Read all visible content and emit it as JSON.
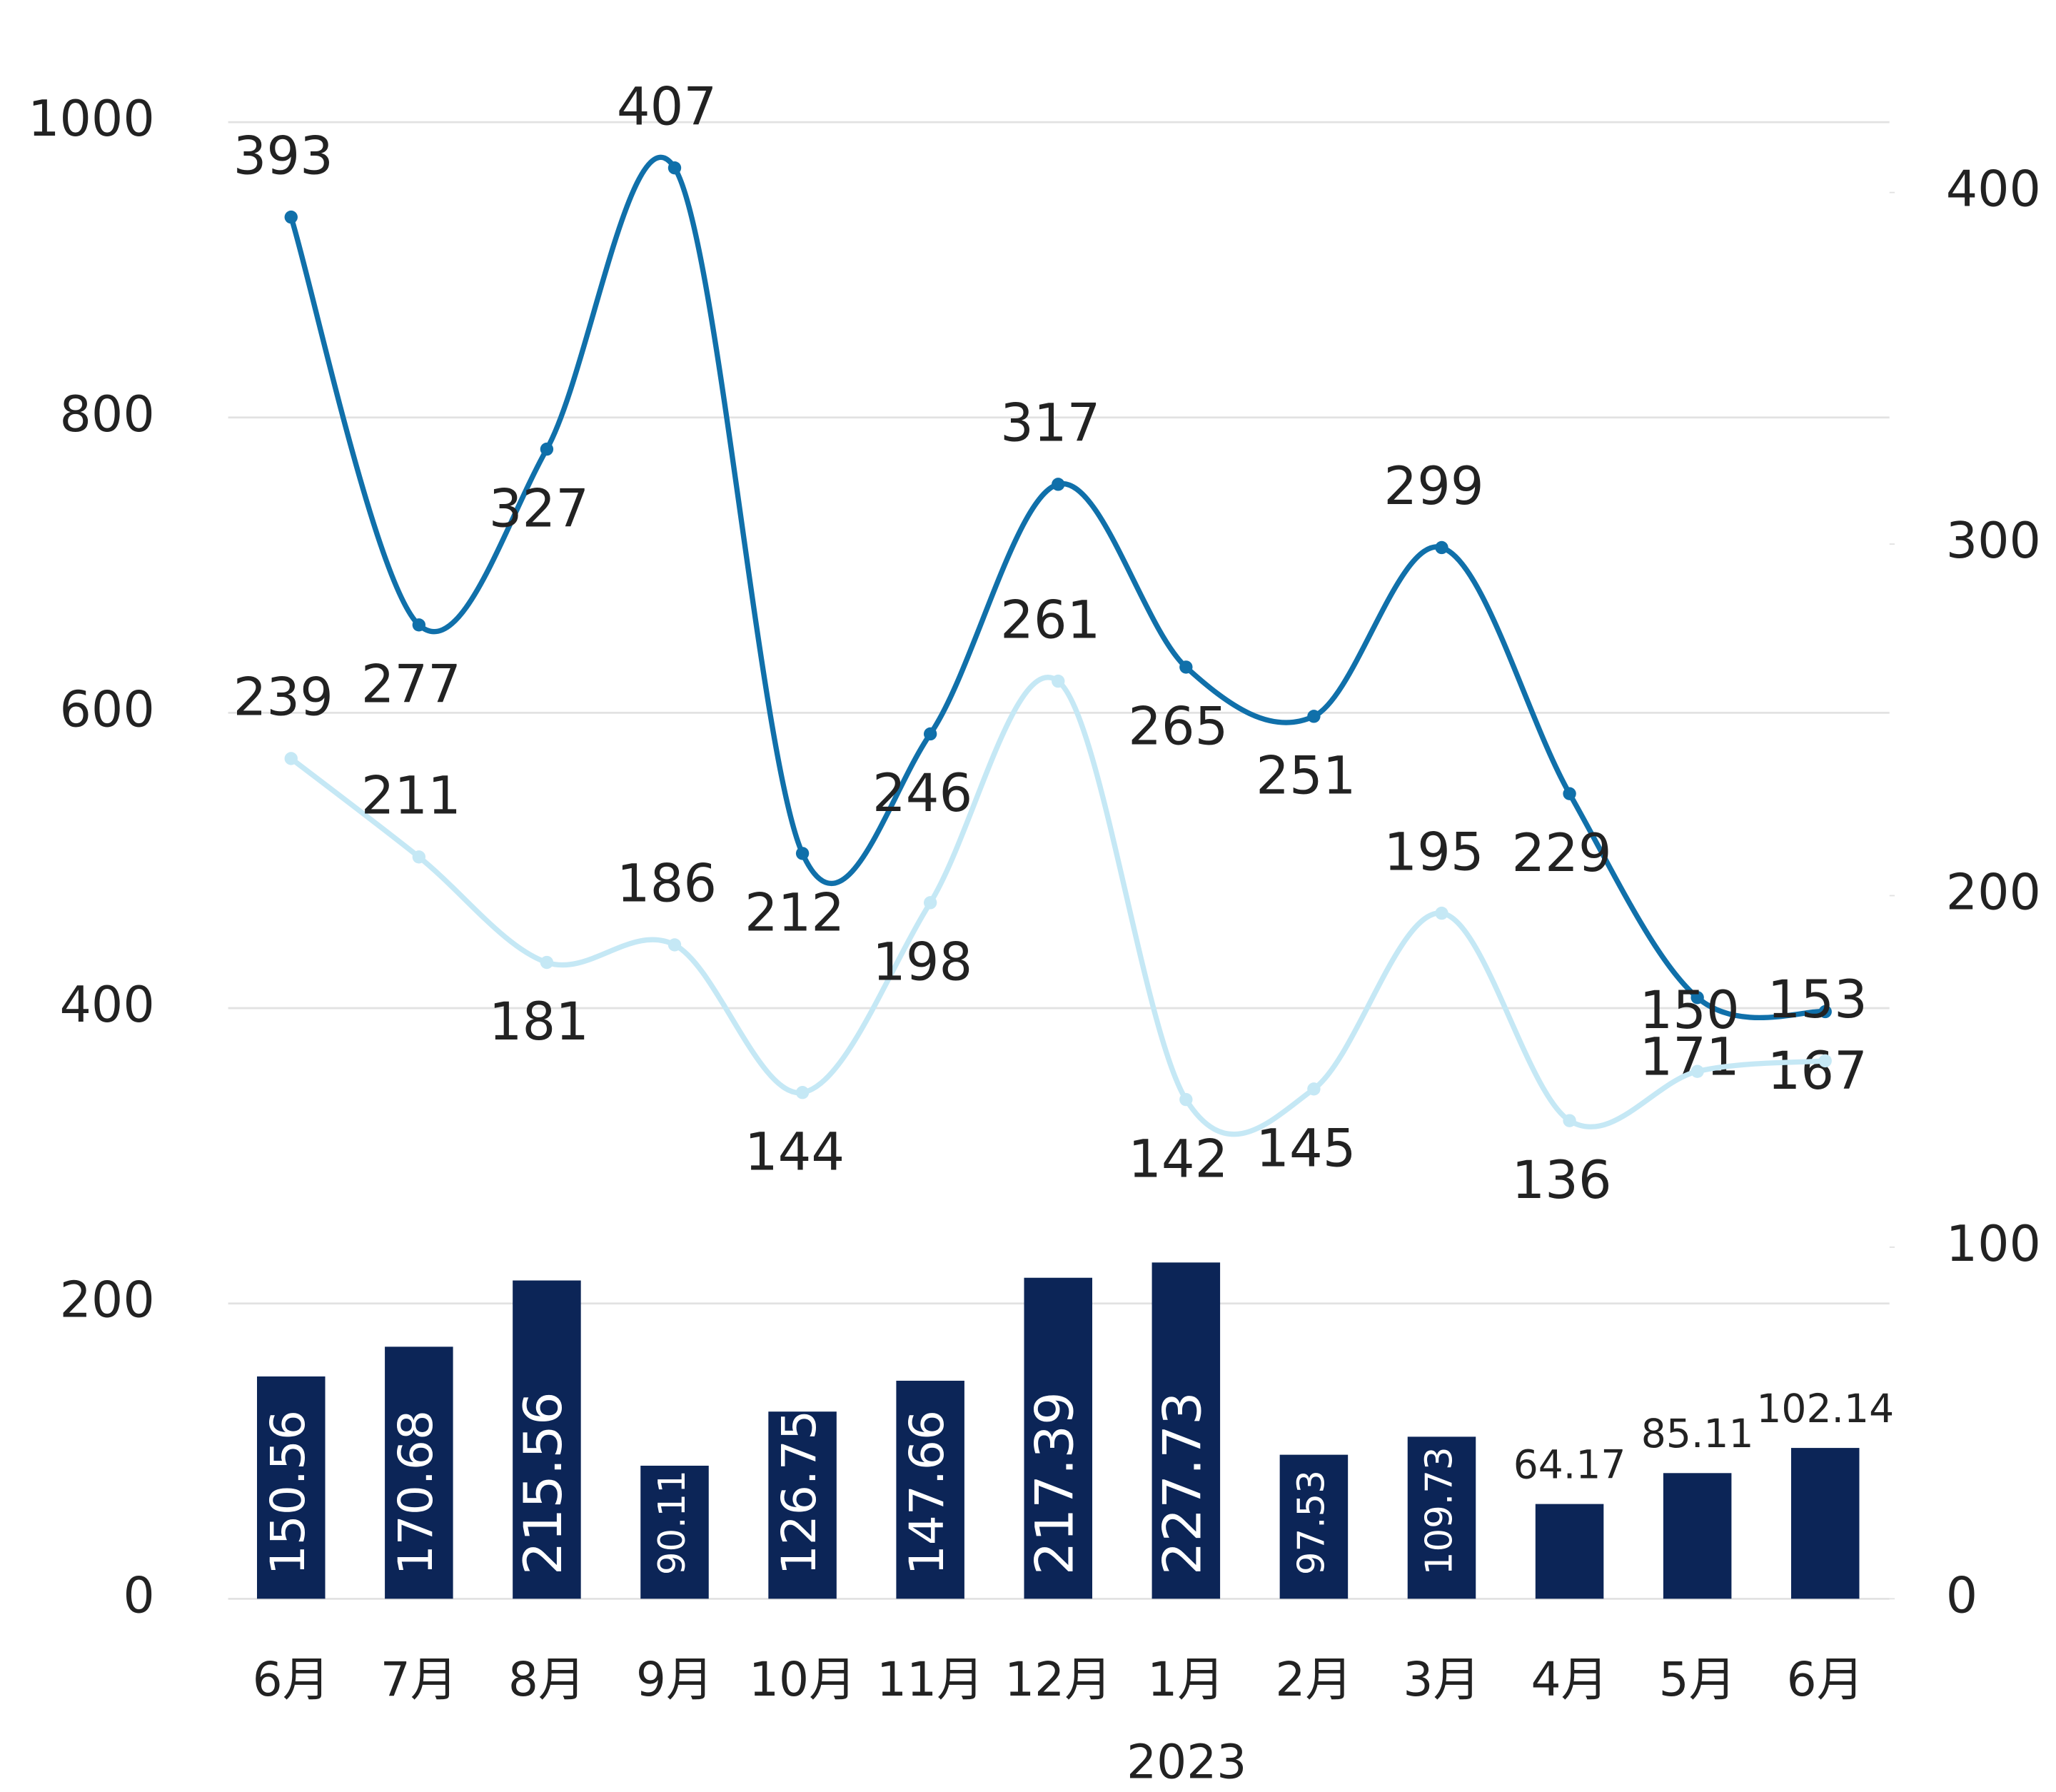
{
  "chart_data": {
    "type": "bar-line",
    "categories": [
      "6月",
      "7月",
      "8月",
      "9月",
      "10月",
      "11月",
      "12月",
      "1月",
      "2月",
      "3月",
      "4月",
      "5月",
      "6月"
    ],
    "group_label": "2023",
    "values": [
      150.56,
      170.68,
      215.56,
      90.11,
      126.75,
      147.66,
      217.39,
      227.73,
      97.53,
      109.73,
      64.17,
      85.11,
      102.14
    ],
    "color": "#0c2557",
    "series": [
      {
        "color": "#1070aa",
        "axis": "y2",
        "values": [
          393,
          277,
          327,
          407,
          212,
          246,
          317,
          265,
          251,
          299,
          229,
          171,
          167
        ]
      },
      {
        "color": "#c5e8f5",
        "axis": "y2",
        "values": [
          239,
          211,
          181,
          186,
          144,
          198,
          261,
          142,
          145,
          195,
          136,
          150,
          153
        ]
      }
    ],
    "ylim": [
      0,
      1000
    ],
    "yticks": [
      0,
      200,
      400,
      600,
      800,
      1000
    ],
    "y2lim": [
      0,
      420
    ],
    "y2ticks": [
      0,
      100,
      200,
      300,
      400
    ],
    "grid": true
  }
}
